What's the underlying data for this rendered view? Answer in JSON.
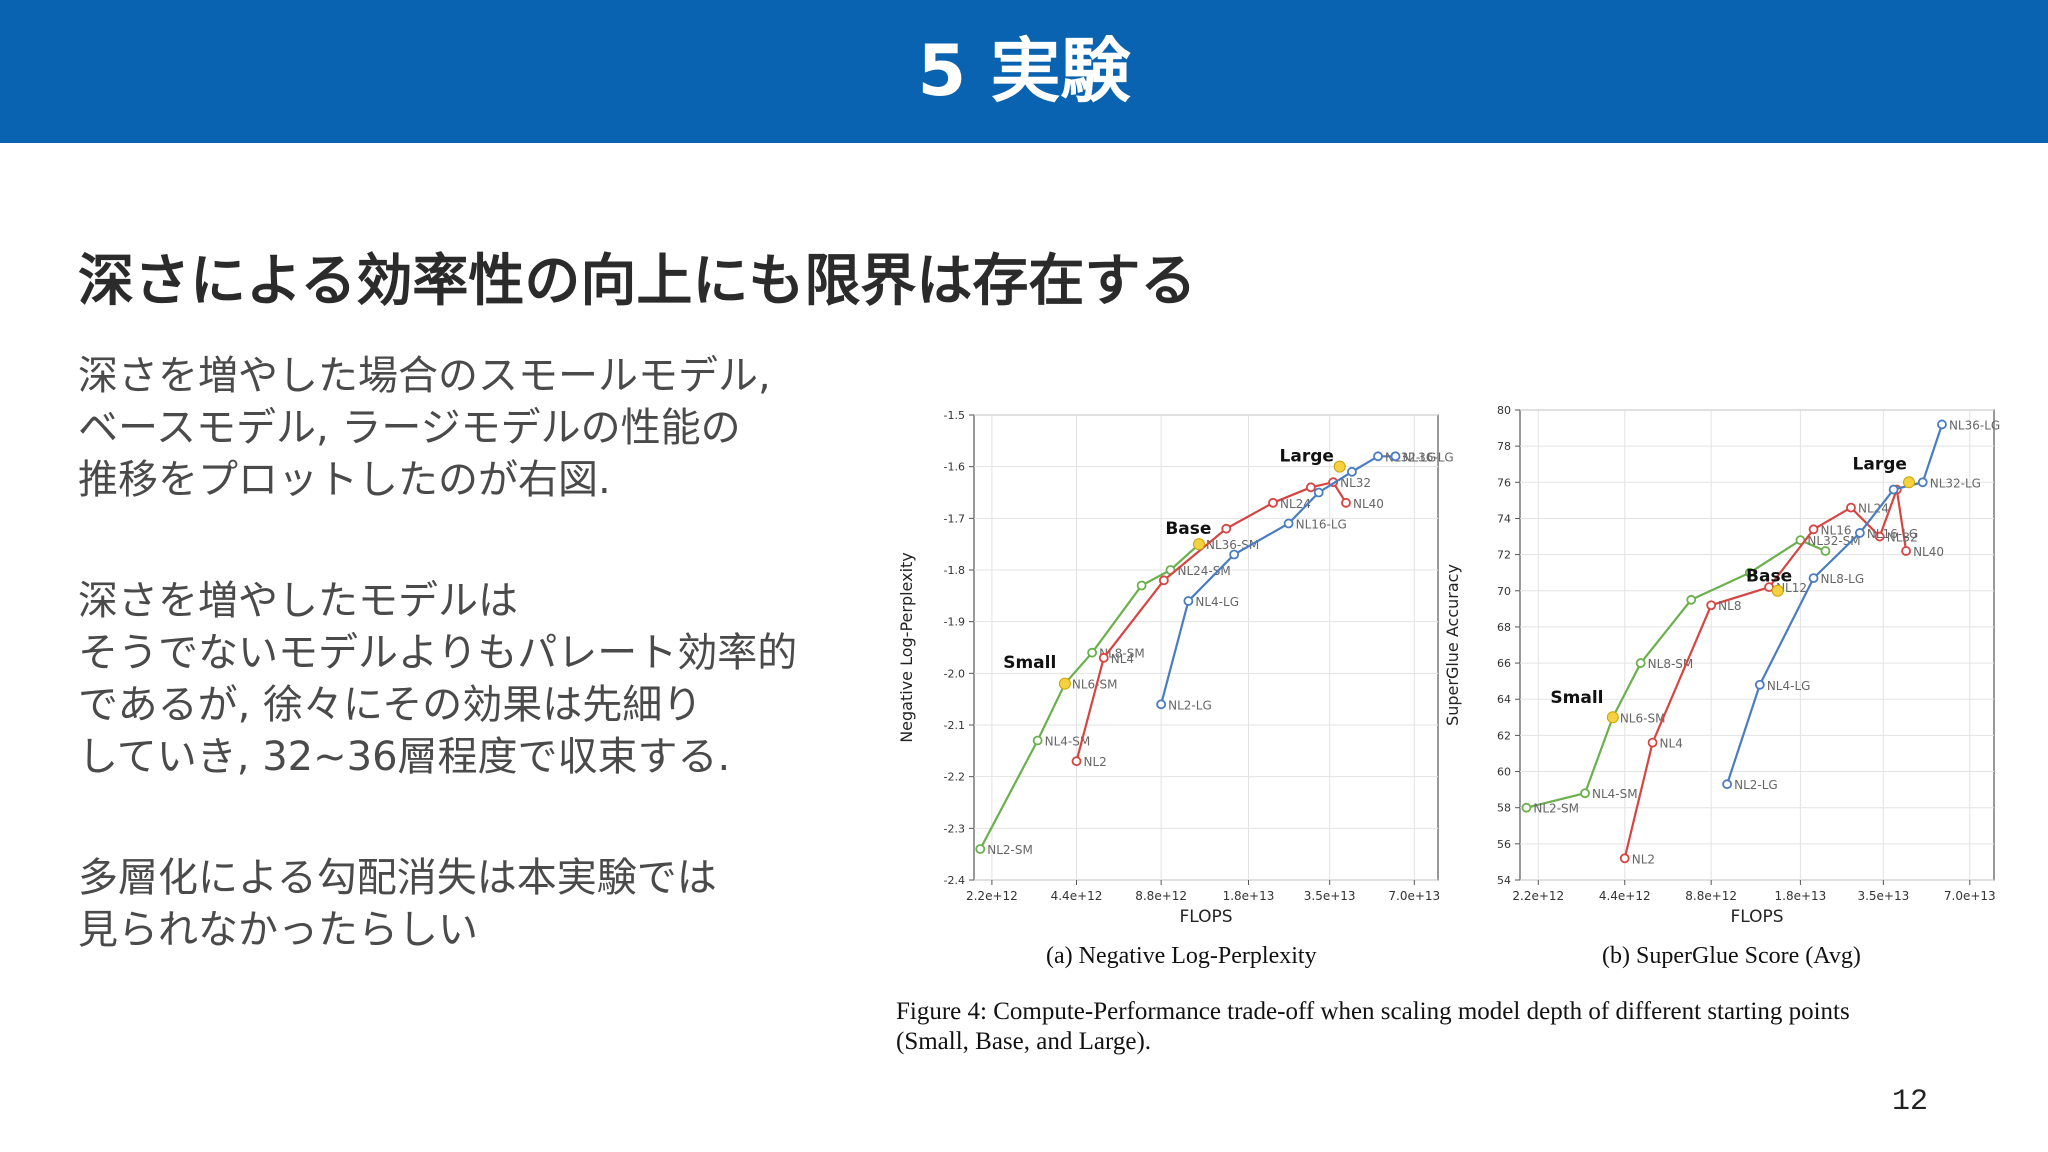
{
  "slide": {
    "title": "5 実験",
    "headline": "深さによる効率性の向上にも限界は存在する",
    "paragraphs": [
      [
        "深さを増やした場合のスモールモデル,",
        "ベースモデル, ラージモデルの性能の",
        "推移をプロットしたのが右図."
      ],
      [
        "深さを増やしたモデルは",
        "そうでないモデルよりもパレート効率的",
        "であるが, 徐々にその効果は先細り",
        "していき, 32~36層程度で収束する."
      ],
      [
        "多層化による勾配消失は本実験では",
        "見られなかったらしい"
      ]
    ],
    "page_number": "12",
    "figure_caption": {
      "line1": "Figure 4:  Compute-Performance trade-off when scaling model depth of different starting points",
      "line2": "(Small, Base, and Large)."
    },
    "colors": {
      "header": "#0a63b0",
      "small": "#6ab04c",
      "base": "#d64541",
      "large": "#4a7cc0",
      "start_marker": "#f5d142"
    }
  },
  "chart_data": [
    {
      "type": "line",
      "caption": "(a) Negative Log-Perplexity",
      "xlabel": "FLOPS",
      "ylabel": "Negative Log-Perplexity",
      "x_scale": "log",
      "x_ticks": [
        "2.2e+12",
        "4.4e+12",
        "8.8e+12",
        "1.8e+13",
        "3.5e+13",
        "7.0e+13"
      ],
      "x_tick_values": [
        2200000000000.0,
        4400000000000.0,
        8800000000000.0,
        18000000000000.0,
        35000000000000.0,
        70000000000000.0
      ],
      "xlim": [
        1900000000000.0,
        85000000000000.0
      ],
      "ylim": [
        -2.4,
        -1.5
      ],
      "y_ticks": [
        "-1.5",
        "-1.6",
        "-1.7",
        "-1.8",
        "-1.9",
        "-2.0",
        "-2.1",
        "-2.2",
        "-2.3",
        "-2.4"
      ],
      "y_tick_values": [
        -1.5,
        -1.6,
        -1.7,
        -1.8,
        -1.9,
        -2.0,
        -2.1,
        -2.2,
        -2.3,
        -2.4
      ],
      "group_labels": [
        {
          "text": "Small",
          "x": 3000000000000.0,
          "y": -1.99
        },
        {
          "text": "Base",
          "x": 11000000000000.0,
          "y": -1.73
        },
        {
          "text": "Large",
          "x": 29000000000000.0,
          "y": -1.59
        }
      ],
      "series": [
        {
          "points": [
            {
              "x": 2000000000000.0,
              "y": -2.34,
              "label": "NL2-SM"
            },
            {
              "x": 3200000000000.0,
              "y": -2.13,
              "label": "NL4-SM"
            },
            {
              "x": 4000000000000.0,
              "y": -2.02,
              "label": "NL6-SM"
            },
            {
              "x": 5000000000000.0,
              "y": -1.96,
              "label": "NL8-SM"
            },
            {
              "x": 7500000000000.0,
              "y": -1.83,
              "label": ""
            },
            {
              "x": 9500000000000.0,
              "y": -1.8,
              "label": "NL24-SM"
            },
            {
              "x": 12000000000000.0,
              "y": -1.75,
              "label": "NL36-SM"
            }
          ]
        },
        {
          "points": [
            {
              "x": 4400000000000.0,
              "y": -2.17,
              "label": "NL2"
            },
            {
              "x": 5500000000000.0,
              "y": -1.97,
              "label": "NL4"
            },
            {
              "x": 9000000000000.0,
              "y": -1.82,
              "label": ""
            },
            {
              "x": 15000000000000.0,
              "y": -1.72,
              "label": ""
            },
            {
              "x": 22000000000000.0,
              "y": -1.67,
              "label": "NL24"
            },
            {
              "x": 30000000000000.0,
              "y": -1.64,
              "label": ""
            },
            {
              "x": 36000000000000.0,
              "y": -1.63,
              "label": "NL32"
            },
            {
              "x": 40000000000000.0,
              "y": -1.67,
              "label": "NL40"
            }
          ]
        },
        {
          "points": [
            {
              "x": 8800000000000.0,
              "y": -2.06,
              "label": "NL2-LG"
            },
            {
              "x": 11000000000000.0,
              "y": -1.86,
              "label": "NL4-LG"
            },
            {
              "x": 16000000000000.0,
              "y": -1.77,
              "label": ""
            },
            {
              "x": 25000000000000.0,
              "y": -1.71,
              "label": "NL16-LG"
            },
            {
              "x": 32000000000000.0,
              "y": -1.65,
              "label": ""
            },
            {
              "x": 42000000000000.0,
              "y": -1.61,
              "label": ""
            },
            {
              "x": 52000000000000.0,
              "y": -1.58,
              "label": "NL32-LG"
            },
            {
              "x": 60000000000000.0,
              "y": -1.58,
              "label": "NL36-LG"
            }
          ]
        }
      ],
      "starts": [
        {
          "x": 4000000000000.0,
          "y": -2.02
        },
        {
          "x": 12000000000000.0,
          "y": -1.75
        },
        {
          "x": 38000000000000.0,
          "y": -1.6
        }
      ]
    },
    {
      "type": "line",
      "caption": "(b) SuperGlue Score (Avg)",
      "xlabel": "FLOPS",
      "ylabel": "SuperGlue Accuracy",
      "x_scale": "log",
      "x_ticks": [
        "2.2e+12",
        "4.4e+12",
        "8.8e+12",
        "1.8e+13",
        "3.5e+13",
        "7.0e+13"
      ],
      "x_tick_values": [
        2200000000000.0,
        4400000000000.0,
        8800000000000.0,
        18000000000000.0,
        35000000000000.0,
        70000000000000.0
      ],
      "xlim": [
        1900000000000.0,
        85000000000000.0
      ],
      "ylim": [
        54,
        80
      ],
      "y_ticks": [
        "54",
        "56",
        "58",
        "60",
        "62",
        "64",
        "66",
        "68",
        "70",
        "72",
        "74",
        "76",
        "78",
        "80"
      ],
      "y_tick_values": [
        54,
        56,
        58,
        60,
        62,
        64,
        66,
        68,
        70,
        72,
        74,
        76,
        78,
        80
      ],
      "group_labels": [
        {
          "text": "Small",
          "x": 3000000000000.0,
          "y": 63.8
        },
        {
          "text": "Base",
          "x": 14000000000000.0,
          "y": 70.5
        },
        {
          "text": "Large",
          "x": 34000000000000.0,
          "y": 76.7
        }
      ],
      "series": [
        {
          "points": [
            {
              "x": 2000000000000.0,
              "y": 58.0,
              "label": "NL2-SM"
            },
            {
              "x": 3200000000000.0,
              "y": 58.8,
              "label": "NL4-SM"
            },
            {
              "x": 4000000000000.0,
              "y": 63.0,
              "label": "NL6-SM"
            },
            {
              "x": 5000000000000.0,
              "y": 66.0,
              "label": "NL8-SM"
            },
            {
              "x": 7500000000000.0,
              "y": 69.5,
              "label": ""
            },
            {
              "x": 12000000000000.0,
              "y": 71.0,
              "label": ""
            },
            {
              "x": 18000000000000.0,
              "y": 72.8,
              "label": "NL32-SM"
            },
            {
              "x": 22000000000000.0,
              "y": 72.2,
              "label": ""
            }
          ]
        },
        {
          "points": [
            {
              "x": 4400000000000.0,
              "y": 55.2,
              "label": "NL2"
            },
            {
              "x": 5500000000000.0,
              "y": 61.6,
              "label": "NL4"
            },
            {
              "x": 8800000000000.0,
              "y": 69.2,
              "label": "NL8"
            },
            {
              "x": 14000000000000.0,
              "y": 70.2,
              "label": "NL12"
            },
            {
              "x": 20000000000000.0,
              "y": 73.4,
              "label": "NL16"
            },
            {
              "x": 27000000000000.0,
              "y": 74.6,
              "label": "NL24"
            },
            {
              "x": 34000000000000.0,
              "y": 73.0,
              "label": "NL32"
            },
            {
              "x": 39000000000000.0,
              "y": 75.6,
              "label": ""
            },
            {
              "x": 42000000000000.0,
              "y": 72.2,
              "label": "NL40"
            }
          ]
        },
        {
          "points": [
            {
              "x": 10000000000000.0,
              "y": 59.3,
              "label": "NL2-LG"
            },
            {
              "x": 13000000000000.0,
              "y": 64.8,
              "label": "NL4-LG"
            },
            {
              "x": 20000000000000.0,
              "y": 70.7,
              "label": "NL8-LG"
            },
            {
              "x": 29000000000000.0,
              "y": 73.2,
              "label": "NL16-LG"
            },
            {
              "x": 38000000000000.0,
              "y": 75.6,
              "label": ""
            },
            {
              "x": 48000000000000.0,
              "y": 76.0,
              "label": "NL32-LG"
            },
            {
              "x": 56000000000000.0,
              "y": 79.2,
              "label": "NL36-LG"
            }
          ]
        }
      ],
      "starts": [
        {
          "x": 4000000000000.0,
          "y": 63.0
        },
        {
          "x": 15000000000000.0,
          "y": 70.0
        },
        {
          "x": 43000000000000.0,
          "y": 76.0
        }
      ]
    }
  ]
}
